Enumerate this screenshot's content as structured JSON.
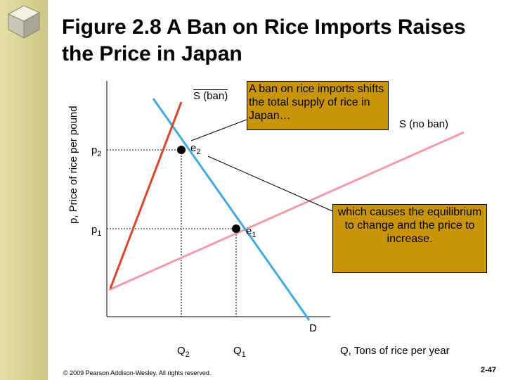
{
  "title": "Figure 2.8  A Ban on Rice Imports Raises the Price in Japan",
  "chart_data": {
    "type": "supply-demand",
    "ylabel": "p, Price of rice per pound",
    "xlabel": "Q, Tons of rice per year",
    "curves": [
      {
        "label": "S (ban)",
        "color": "#d9442a"
      },
      {
        "label": "S (no ban)",
        "color": "#f29aa6"
      },
      {
        "label": "D",
        "color": "#3fa9e0"
      }
    ],
    "points": [
      {
        "label": "e",
        "subscript": "2"
      },
      {
        "label": "e",
        "subscript": "1"
      }
    ],
    "y_ticks": [
      {
        "label": "p",
        "subscript": "2"
      },
      {
        "label": "p",
        "subscript": "1"
      }
    ],
    "x_ticks": [
      {
        "label": "Q",
        "subscript": "2"
      },
      {
        "label": "Q",
        "subscript": "1"
      }
    ]
  },
  "callouts": {
    "top": "A ban on rice imports shifts the total supply of rice in Japan…",
    "right": "which causes the equilibrium to change and the price to increase."
  },
  "footer": "© 2009 Pearson Addison-Wesley. All rights reserved.",
  "page_number": "2-47",
  "colors": {
    "sidebar": "#d8d090",
    "callout": "#c8950a"
  }
}
